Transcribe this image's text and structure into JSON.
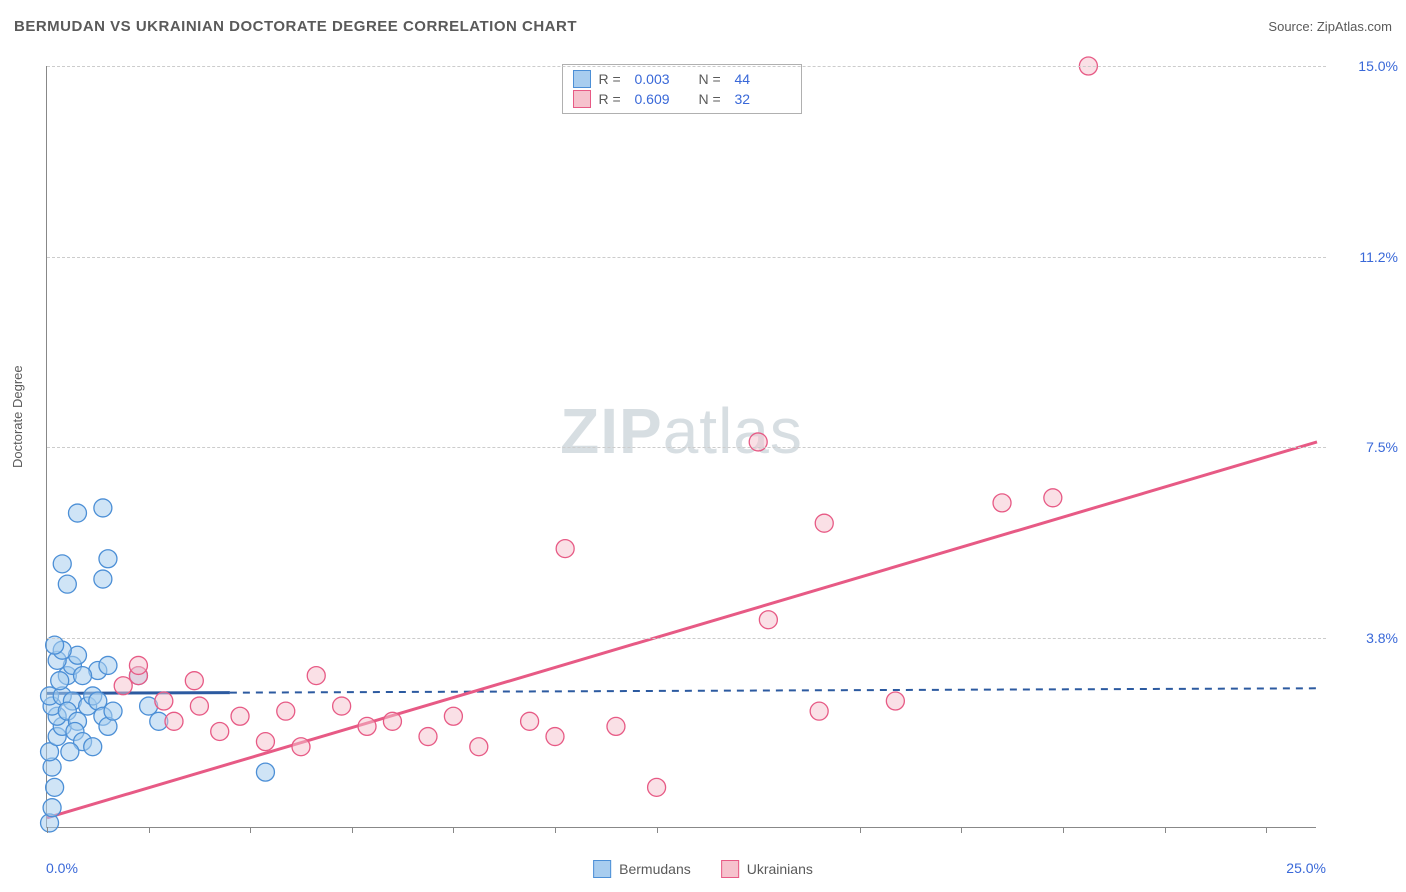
{
  "title": "BERMUDAN VS UKRAINIAN DOCTORATE DEGREE CORRELATION CHART",
  "source_label": "Source:",
  "source_name": "ZipAtlas.com",
  "y_axis_title": "Doctorate Degree",
  "watermark_bold": "ZIP",
  "watermark_light": "atlas",
  "chart": {
    "type": "scatter",
    "xlim": [
      0,
      25
    ],
    "ylim": [
      0,
      15
    ],
    "x_label_min": "0.0%",
    "x_label_max": "25.0%",
    "x_tick_positions": [
      0,
      2,
      4,
      6,
      8,
      10,
      12,
      16,
      18,
      20,
      22,
      24
    ],
    "y_gridlines": [
      3.75,
      7.5,
      11.25,
      15.0
    ],
    "y_tick_labels": [
      "3.8%",
      "7.5%",
      "11.2%",
      "15.0%"
    ],
    "background_color": "#ffffff",
    "grid_color": "#cccccc",
    "axis_label_color": "#3968d8",
    "text_color": "#5a5a5a",
    "marker_radius": 9,
    "marker_stroke_width": 1.3,
    "trend_line_width_solid": 3,
    "trend_line_width_dash": 2
  },
  "series": [
    {
      "name": "Bermudans",
      "fill": "#a8cdef",
      "stroke": "#4c8fd6",
      "fill_opacity": 0.55,
      "R_label": "R =",
      "R": "0.003",
      "N_label": "N =",
      "N": "44",
      "trend": {
        "y_at_x0": 2.65,
        "y_at_xmax": 2.75,
        "solid_until_x": 3.6,
        "style": "solid-then-dashed",
        "color": "#2c5aa0"
      },
      "points": [
        [
          0.05,
          0.1
        ],
        [
          0.1,
          0.4
        ],
        [
          0.15,
          0.8
        ],
        [
          0.1,
          1.2
        ],
        [
          0.05,
          1.5
        ],
        [
          0.2,
          1.8
        ],
        [
          0.3,
          2.0
        ],
        [
          0.2,
          2.2
        ],
        [
          0.1,
          2.4
        ],
        [
          0.05,
          2.6
        ],
        [
          0.3,
          2.6
        ],
        [
          0.5,
          2.5
        ],
        [
          0.4,
          2.3
        ],
        [
          0.6,
          2.1
        ],
        [
          0.55,
          1.9
        ],
        [
          0.7,
          1.7
        ],
        [
          0.8,
          2.4
        ],
        [
          0.9,
          2.6
        ],
        [
          1.0,
          2.5
        ],
        [
          1.1,
          2.2
        ],
        [
          1.2,
          2.0
        ],
        [
          1.3,
          2.3
        ],
        [
          0.4,
          3.0
        ],
        [
          0.5,
          3.2
        ],
        [
          0.2,
          3.3
        ],
        [
          0.6,
          3.4
        ],
        [
          0.3,
          3.5
        ],
        [
          1.0,
          3.1
        ],
        [
          1.2,
          3.2
        ],
        [
          1.8,
          3.0
        ],
        [
          2.0,
          2.4
        ],
        [
          2.2,
          2.1
        ],
        [
          0.4,
          4.8
        ],
        [
          1.1,
          4.9
        ],
        [
          0.3,
          5.2
        ],
        [
          1.2,
          5.3
        ],
        [
          0.6,
          6.2
        ],
        [
          1.1,
          6.3
        ],
        [
          4.3,
          1.1
        ],
        [
          0.15,
          3.6
        ],
        [
          0.7,
          3.0
        ],
        [
          0.25,
          2.9
        ],
        [
          0.45,
          1.5
        ],
        [
          0.9,
          1.6
        ]
      ]
    },
    {
      "name": "Ukrainians",
      "fill": "#f6c2cd",
      "stroke": "#e75a85",
      "fill_opacity": 0.5,
      "R_label": "R =",
      "R": "0.609",
      "N_label": "N =",
      "N": "32",
      "trend": {
        "y_at_x0": 0.2,
        "y_at_xmax": 7.6,
        "solid_until_x": 25,
        "style": "solid",
        "color": "#e75a85"
      },
      "points": [
        [
          1.8,
          3.0
        ],
        [
          1.8,
          3.2
        ],
        [
          2.3,
          2.5
        ],
        [
          2.5,
          2.1
        ],
        [
          3.0,
          2.4
        ],
        [
          3.4,
          1.9
        ],
        [
          3.8,
          2.2
        ],
        [
          4.3,
          1.7
        ],
        [
          4.7,
          2.3
        ],
        [
          5.0,
          1.6
        ],
        [
          5.3,
          3.0
        ],
        [
          6.3,
          2.0
        ],
        [
          6.8,
          2.1
        ],
        [
          7.5,
          1.8
        ],
        [
          8.0,
          2.2
        ],
        [
          8.5,
          1.6
        ],
        [
          9.5,
          2.1
        ],
        [
          10.0,
          1.8
        ],
        [
          11.2,
          2.0
        ],
        [
          12.0,
          0.8
        ],
        [
          10.2,
          5.5
        ],
        [
          14.0,
          7.6
        ],
        [
          14.2,
          4.1
        ],
        [
          15.2,
          2.3
        ],
        [
          15.3,
          6.0
        ],
        [
          16.7,
          2.5
        ],
        [
          18.8,
          6.4
        ],
        [
          19.8,
          6.5
        ],
        [
          20.5,
          15.0
        ],
        [
          1.5,
          2.8
        ],
        [
          2.9,
          2.9
        ],
        [
          5.8,
          2.4
        ]
      ]
    }
  ],
  "legend_bottom": [
    "Bermudans",
    "Ukrainians"
  ]
}
